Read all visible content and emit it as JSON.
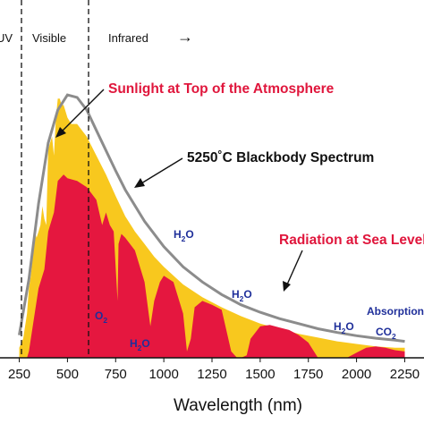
{
  "colors": {
    "top_of_atmosphere_fill": "#f8c81e",
    "sea_level_fill": "#e5173f",
    "blackbody_curve": "#8c8c8c",
    "label_red": "#e0163c",
    "label_dark": "#111111",
    "molecule_blue": "#1f2f9a"
  },
  "regions": {
    "uv": "UV",
    "visible": "Visible",
    "infrared": "Infrared",
    "infrared_arrow": "→"
  },
  "labels": {
    "top_of_atmosphere": "Sunlight at Top of the Atmosphere",
    "blackbody": "5250˚C Blackbody Spectrum",
    "sea_level": "Radiation at Sea Level"
  },
  "absorption": {
    "o2": {
      "base": "O",
      "sub": "2"
    },
    "h2o_a": {
      "base": "H",
      "sub": "2",
      "tail": "O"
    },
    "h2o_b": {
      "base": "H",
      "sub": "2",
      "tail": "O"
    },
    "h2o_c": {
      "base": "H",
      "sub": "2",
      "tail": "O"
    },
    "h2o_d": {
      "base": "H",
      "sub": "2",
      "tail": "O"
    },
    "absorption_word": "Absorption Bands",
    "co2": {
      "base": "CO",
      "sub": "2"
    }
  },
  "chart_data": {
    "type": "area",
    "title": "",
    "xlabel": "Wavelength (nm)",
    "ylabel": "",
    "xlim": [
      250,
      2250
    ],
    "ylim": [
      0,
      2.3
    ],
    "x_tick_labels": [
      "250",
      "500",
      "750",
      "1000",
      "1250",
      "1500",
      "1750",
      "2000",
      "2250"
    ],
    "x_ticks": [
      250,
      500,
      750,
      1000,
      1250,
      1500,
      1750,
      2000,
      2250
    ],
    "region_boundaries_nm": [
      400,
      700
    ],
    "series": [
      {
        "name": "Sunlight at Top of the Atmosphere",
        "x": [
          250,
          270,
          290,
          300,
          310,
          320,
          330,
          340,
          350,
          360,
          370,
          380,
          390,
          400,
          410,
          420,
          430,
          440,
          450,
          460,
          470,
          480,
          490,
          500,
          520,
          550,
          600,
          650,
          700,
          750,
          800,
          850,
          900,
          950,
          1000,
          1100,
          1200,
          1300,
          1400,
          1500,
          1600,
          1700,
          1800,
          1900,
          2000,
          2100,
          2200,
          2250
        ],
        "values": [
          0.08,
          0.15,
          0.35,
          0.55,
          0.65,
          0.8,
          1.0,
          0.95,
          1.0,
          1.05,
          1.2,
          1.1,
          1.05,
          1.65,
          1.7,
          1.75,
          1.6,
          1.9,
          2.05,
          2.05,
          2.0,
          2.0,
          1.95,
          1.9,
          1.85,
          1.85,
          1.75,
          1.6,
          1.45,
          1.28,
          1.12,
          1.0,
          0.9,
          0.8,
          0.72,
          0.58,
          0.48,
          0.4,
          0.33,
          0.27,
          0.23,
          0.19,
          0.16,
          0.13,
          0.11,
          0.09,
          0.08,
          0.08
        ]
      },
      {
        "name": "5250˚C Blackbody Spectrum",
        "x": [
          250,
          300,
          350,
          400,
          450,
          500,
          550,
          600,
          650,
          700,
          750,
          800,
          900,
          1000,
          1100,
          1200,
          1300,
          1400,
          1500,
          1600,
          1700,
          1800,
          1900,
          2000,
          2100,
          2200,
          2250
        ],
        "values": [
          0.18,
          0.62,
          1.22,
          1.7,
          1.96,
          2.08,
          2.06,
          1.96,
          1.8,
          1.64,
          1.48,
          1.33,
          1.08,
          0.88,
          0.72,
          0.6,
          0.5,
          0.42,
          0.36,
          0.31,
          0.27,
          0.23,
          0.2,
          0.175,
          0.155,
          0.14,
          0.13
        ]
      },
      {
        "name": "Radiation at Sea Level",
        "x": [
          250,
          290,
          300,
          320,
          350,
          380,
          400,
          430,
          450,
          480,
          500,
          550,
          600,
          650,
          680,
          700,
          720,
          740,
          760,
          765,
          780,
          800,
          850,
          900,
          930,
          950,
          980,
          1000,
          1050,
          1100,
          1120,
          1140,
          1160,
          1200,
          1250,
          1300,
          1350,
          1380,
          1400,
          1430,
          1450,
          1500,
          1550,
          1600,
          1650,
          1700,
          1750,
          1800,
          1850,
          1900,
          1950,
          2000,
          2050,
          2100,
          2150,
          2200,
          2250
        ],
        "values": [
          0.0,
          0.0,
          0.05,
          0.25,
          0.55,
          0.7,
          1.0,
          1.15,
          1.4,
          1.45,
          1.42,
          1.4,
          1.35,
          1.25,
          1.05,
          1.15,
          1.05,
          1.0,
          0.45,
          0.9,
          0.98,
          0.95,
          0.85,
          0.6,
          0.25,
          0.45,
          0.6,
          0.65,
          0.6,
          0.35,
          0.05,
          0.15,
          0.4,
          0.45,
          0.42,
          0.38,
          0.05,
          0.0,
          0.0,
          0.02,
          0.15,
          0.25,
          0.26,
          0.24,
          0.22,
          0.18,
          0.12,
          0.0,
          0.0,
          0.0,
          0.0,
          0.04,
          0.08,
          0.09,
          0.08,
          0.06,
          0.05
        ]
      }
    ],
    "annotations": [
      "Sunlight at Top of the Atmosphere",
      "5250˚C Blackbody Spectrum",
      "Radiation at Sea Level",
      "Absorption Bands",
      "O2",
      "H2O",
      "CO2"
    ]
  }
}
